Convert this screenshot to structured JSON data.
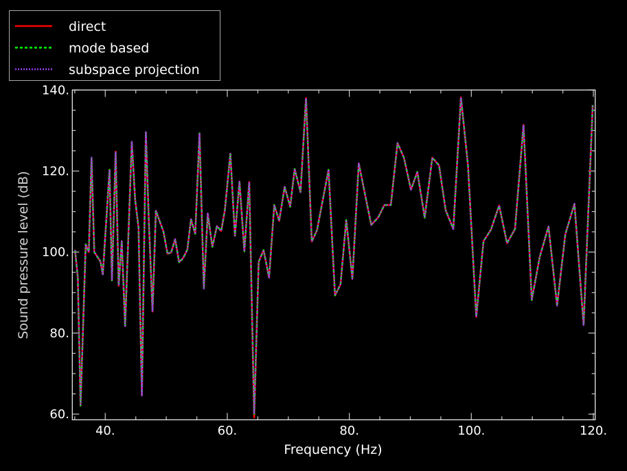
{
  "chart_data": {
    "type": "line",
    "title": "",
    "xlabel": "Frequency (Hz)",
    "ylabel": "Sound pressure level (dB)",
    "xlim": [
      34.6,
      120.3
    ],
    "ylim": [
      58.6,
      140
    ],
    "xticks": [
      40,
      60,
      80,
      100,
      120
    ],
    "xtick_labels": [
      "40.",
      "60.",
      "80.",
      "100.",
      "120."
    ],
    "yticks": [
      60,
      80,
      100,
      120,
      140
    ],
    "ytick_labels": [
      "60.",
      "80.",
      "100.",
      "120.",
      "140."
    ],
    "minor_x_step": 5,
    "minor_y_step": 5,
    "grid": false,
    "legend_position": "top-left",
    "x": [
      35.05,
      35.5,
      35.95,
      36.8,
      37.3,
      37.75,
      38.2,
      39.2,
      39.6,
      40.7,
      41.1,
      41.7,
      42.2,
      42.7,
      43.25,
      44.35,
      44.9,
      45.45,
      46.0,
      46.65,
      47.15,
      47.75,
      48.3,
      49.55,
      50.2,
      50.8,
      51.45,
      52.1,
      52.75,
      53.45,
      54.05,
      54.75,
      55.45,
      56.15,
      56.8,
      57.55,
      58.3,
      59.0,
      59.6,
      60.5,
      61.25,
      62.0,
      62.8,
      63.6,
      64.4,
      65.15,
      65.95,
      66.85,
      67.7,
      68.5,
      69.4,
      70.3,
      71.05,
      72.0,
      72.9,
      73.85,
      74.7,
      76.6,
      77.65,
      78.55,
      79.5,
      80.5,
      81.55,
      82.6,
      83.6,
      84.75,
      85.75,
      86.8,
      87.9,
      88.95,
      90.1,
      91.15,
      92.35,
      93.6,
      94.7,
      95.8,
      97.05,
      98.3,
      99.45,
      100.8,
      102.0,
      103.2,
      104.55,
      105.85,
      107.15,
      108.55,
      109.9,
      111.2,
      112.65,
      114.05,
      115.4,
      116.9,
      118.4,
      119.9
    ],
    "series": [
      {
        "name": "direct",
        "color": "#ff0000",
        "style": "solid",
        "values": [
          100.5,
          93.7,
          62.1,
          101.9,
          100.0,
          123.3,
          100.0,
          97.7,
          94.5,
          120.3,
          93.0,
          124.8,
          91.7,
          102.7,
          81.7,
          127.2,
          112.9,
          106.1,
          64.6,
          129.6,
          107.2,
          85.3,
          110.2,
          105.0,
          99.6,
          99.9,
          103.2,
          97.5,
          98.5,
          100.6,
          108.1,
          104.5,
          129.3,
          91.0,
          109.5,
          101.3,
          106.4,
          105.2,
          110.3,
          124.3,
          104.0,
          117.4,
          100.2,
          117.3,
          59.2,
          97.6,
          100.5,
          93.7,
          111.6,
          107.7,
          116.1,
          111.2,
          120.5,
          114.8,
          138.0,
          102.6,
          105.4,
          120.3,
          89.3,
          92.0,
          107.9,
          93.4,
          121.9,
          114.0,
          106.7,
          108.6,
          111.6,
          111.6,
          126.9,
          123.3,
          115.4,
          119.8,
          108.5,
          123.3,
          121.4,
          110.3,
          105.7,
          138.2,
          121.3,
          84.0,
          102.7,
          105.5,
          111.5,
          102.2,
          105.7,
          131.4,
          88.2,
          98.8,
          106.3,
          86.8,
          104.4,
          111.9,
          82.0,
          136.3
        ]
      },
      {
        "name": "mode based",
        "color": "#00ff00",
        "style": "dashed",
        "values": [
          100.5,
          93.7,
          62.1,
          101.9,
          100.0,
          123.3,
          100.0,
          97.7,
          94.5,
          120.3,
          93.0,
          124.8,
          91.7,
          102.7,
          81.7,
          127.2,
          112.9,
          106.1,
          64.6,
          129.6,
          107.2,
          85.3,
          110.2,
          105.0,
          99.6,
          99.9,
          103.2,
          97.5,
          98.5,
          100.6,
          108.1,
          104.5,
          129.3,
          91.0,
          109.5,
          101.3,
          106.4,
          105.2,
          110.3,
          124.3,
          104.0,
          117.4,
          100.2,
          117.3,
          60.0,
          97.6,
          100.5,
          93.7,
          111.6,
          107.7,
          116.1,
          111.2,
          120.5,
          114.8,
          138.0,
          102.6,
          105.4,
          120.3,
          89.3,
          92.0,
          107.9,
          93.4,
          121.9,
          114.0,
          106.7,
          108.6,
          111.6,
          111.6,
          126.9,
          123.3,
          115.4,
          119.8,
          108.5,
          123.3,
          121.4,
          110.3,
          105.7,
          138.2,
          121.3,
          84.0,
          102.7,
          105.5,
          111.5,
          102.2,
          105.7,
          131.4,
          88.2,
          98.8,
          106.3,
          86.8,
          104.4,
          111.9,
          82.0,
          136.3
        ]
      },
      {
        "name": "subspace projection",
        "color": "#9a3cf0",
        "style": "dotted",
        "values": [
          100.5,
          93.7,
          62.1,
          101.9,
          100.0,
          123.3,
          100.0,
          97.7,
          94.5,
          120.3,
          93.0,
          124.8,
          91.7,
          102.7,
          81.7,
          127.2,
          112.9,
          106.1,
          64.6,
          129.6,
          107.2,
          85.3,
          110.2,
          105.0,
          99.6,
          99.9,
          103.2,
          97.5,
          98.5,
          100.6,
          108.1,
          104.5,
          129.3,
          91.0,
          109.5,
          101.3,
          106.4,
          105.2,
          110.3,
          124.3,
          104.0,
          117.4,
          100.2,
          117.3,
          60.0,
          97.6,
          100.5,
          93.7,
          111.6,
          107.7,
          116.1,
          111.2,
          120.5,
          114.8,
          138.0,
          102.6,
          105.4,
          120.3,
          89.3,
          92.0,
          107.9,
          93.4,
          121.9,
          114.0,
          106.7,
          108.6,
          111.6,
          111.6,
          126.9,
          123.3,
          115.4,
          119.8,
          108.5,
          123.3,
          121.4,
          110.3,
          105.7,
          138.2,
          121.3,
          84.0,
          102.7,
          105.5,
          111.5,
          102.2,
          105.7,
          131.4,
          88.2,
          98.8,
          106.3,
          86.8,
          104.4,
          111.9,
          82.0,
          136.3
        ]
      }
    ]
  }
}
